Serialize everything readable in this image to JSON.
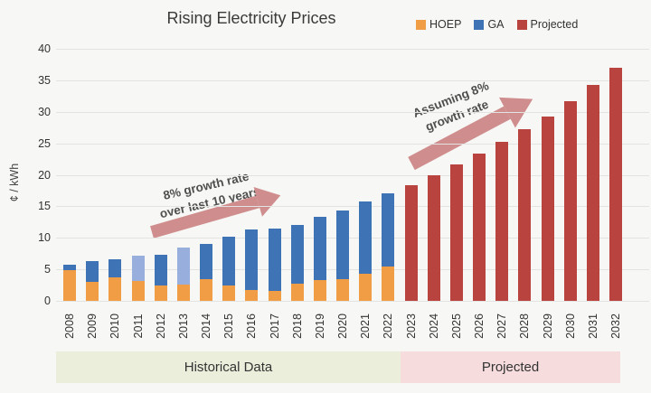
{
  "title": "Rising Electricity Prices",
  "ylabel": "¢ / kWh",
  "legend": [
    {
      "label": "HOEP",
      "color": "#f09d45"
    },
    {
      "label": "GA",
      "color": "#3e73b6"
    },
    {
      "label": "Projected",
      "color": "#b9443f"
    }
  ],
  "annotations": {
    "historical": {
      "line1": "8% growth rate",
      "line2": "over last 10 years"
    },
    "projected": {
      "line1": "Assuming 8%",
      "line2": "growth rate"
    }
  },
  "bands": {
    "historical": "Historical Data",
    "projected": "Projected"
  },
  "colors": {
    "background": "#f7f7f5",
    "grid": "#e3e3e1",
    "hoep": "#f09d45",
    "ga": "#3e73b6",
    "ga_light": "#98aedd",
    "projected": "#b9443f",
    "arrow": "#cf8d8d",
    "band_historical_bg": "#eaeedb",
    "band_projected_bg": "#f6dcdc",
    "annotation_text": "#4f4f4f"
  },
  "chart_data": {
    "type": "bar",
    "stacked": true,
    "title": "Rising Electricity Prices",
    "xlabel": "",
    "ylabel": "¢ / kWh",
    "ylim": [
      0,
      40
    ],
    "yticks": [
      0,
      5,
      10,
      15,
      20,
      25,
      30,
      35,
      40
    ],
    "grid": true,
    "legend_position": "top-right",
    "categories": [
      "2008",
      "2009",
      "2010",
      "2011",
      "2012",
      "2013",
      "2014",
      "2015",
      "2016",
      "2017",
      "2018",
      "2019",
      "2020",
      "2021",
      "2022",
      "2023",
      "2024",
      "2025",
      "2026",
      "2027",
      "2028",
      "2029",
      "2030",
      "2031",
      "2032"
    ],
    "series": [
      {
        "name": "HOEP",
        "color": "#f09d45",
        "values": [
          4.9,
          3.0,
          3.7,
          3.1,
          2.4,
          2.6,
          3.5,
          2.4,
          1.7,
          1.6,
          2.7,
          3.3,
          3.5,
          4.3,
          5.4,
          0,
          0,
          0,
          0,
          0,
          0,
          0,
          0,
          0,
          0
        ]
      },
      {
        "name": "GA",
        "color": "#3e73b6",
        "values": [
          0.9,
          3.3,
          2.9,
          4.0,
          4.9,
          5.9,
          5.6,
          7.8,
          9.6,
          9.8,
          9.3,
          10.0,
          10.8,
          11.4,
          11.6,
          0,
          0,
          0,
          0,
          0,
          0,
          0,
          0,
          0,
          0
        ]
      },
      {
        "name": "Projected",
        "color": "#b9443f",
        "values": [
          0,
          0,
          0,
          0,
          0,
          0,
          0,
          0,
          0,
          0,
          0,
          0,
          0,
          0,
          0,
          18.3,
          19.9,
          21.6,
          23.3,
          25.2,
          27.2,
          29.3,
          31.7,
          34.3,
          37.0
        ]
      }
    ],
    "light_ga_years": [
      "2011",
      "2013"
    ],
    "annotations": [
      "8% growth rate over last 10 years",
      "Assuming 8% growth rate"
    ]
  }
}
